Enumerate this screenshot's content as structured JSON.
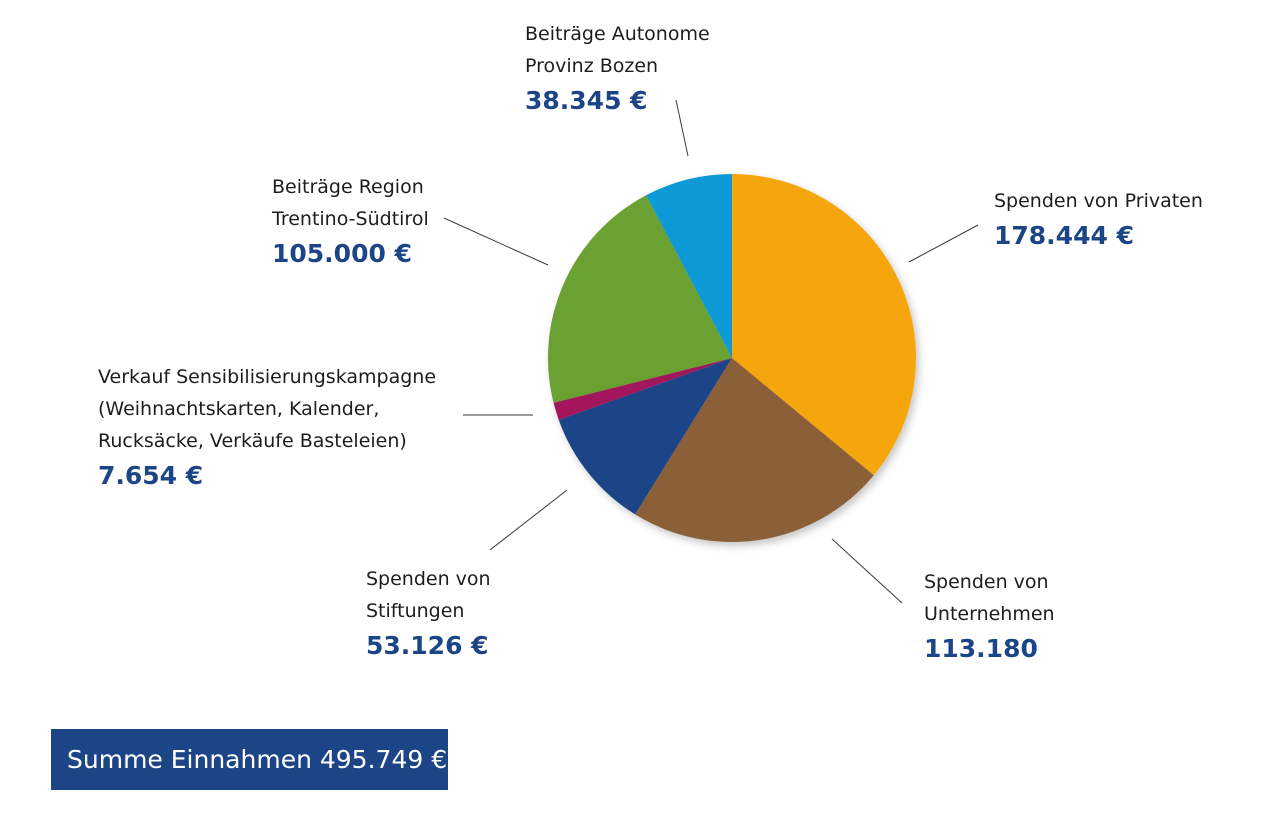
{
  "chart_data": {
    "type": "pie",
    "slices": [
      {
        "label_lines": [
          "Spenden von Privaten"
        ],
        "value": 178444,
        "value_label": "178.444 €",
        "color": "#f5a60a"
      },
      {
        "label_lines": [
          "Spenden von",
          "Unternehmen"
        ],
        "value": 113180,
        "value_label": "113.180",
        "color": "#8b6138"
      },
      {
        "label_lines": [
          "Spenden von",
          "Stiftungen"
        ],
        "value": 53126,
        "value_label": "53.126 €",
        "color": "#1c4587"
      },
      {
        "label_lines": [
          "Verkauf Sensibilisierungskampagne",
          "(Weihnachtskarten, Kalender,",
          "Rucksäcke, Verkäufe Basteleien)"
        ],
        "value": 7654,
        "value_label": "7.654 €",
        "color": "#a3195b"
      },
      {
        "label_lines": [
          "Beiträge Region",
          "Trentino-Südtirol"
        ],
        "value": 105000,
        "value_label": "105.000 €",
        "color": "#6ba131"
      },
      {
        "label_lines": [
          "Beiträge Autonome",
          "Provinz Bozen"
        ],
        "value": 38345,
        "value_label": "38.345 €",
        "color": "#0a9ad7"
      }
    ],
    "total_label": "Summe Einnahmen 495.749 €"
  }
}
